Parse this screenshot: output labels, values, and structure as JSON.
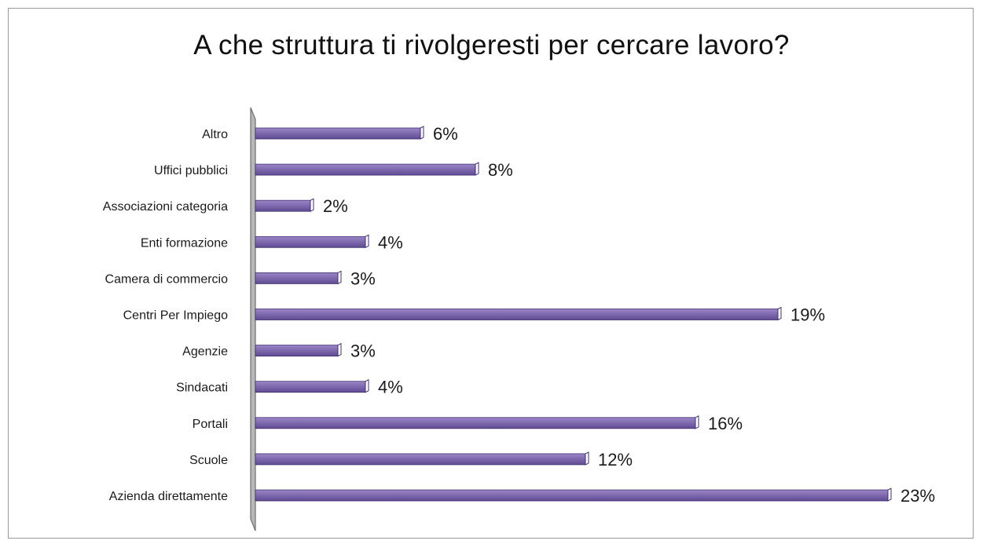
{
  "chart_data": {
    "type": "bar",
    "orientation": "horizontal",
    "title": "A che struttura ti rivolgeresti per cercare lavoro?",
    "categories": [
      "Altro",
      "Uffici pubblici",
      "Associazioni categoria",
      "Enti formazione",
      "Camera di commercio",
      "Centri Per Impiego",
      "Agenzie",
      "Sindacati",
      "Portali",
      "Scuole",
      "Azienda direttamente"
    ],
    "values": [
      6,
      8,
      2,
      4,
      3,
      19,
      3,
      4,
      16,
      12,
      23
    ],
    "labels": [
      "6%",
      "8%",
      "2%",
      "4%",
      "3%",
      "19%",
      "3%",
      "4%",
      "16%",
      "12%",
      "23%"
    ],
    "unit": "%",
    "xlim": [
      0,
      23
    ],
    "grid": false,
    "legend": "none",
    "colors": {
      "bar_top": "#9c86c8",
      "bar_bottom": "#5f4b92",
      "bar_edge": "#3f2f6e",
      "axis_wall": "#b8b8b8",
      "axis_wall_edge": "#6e6e6e"
    }
  }
}
